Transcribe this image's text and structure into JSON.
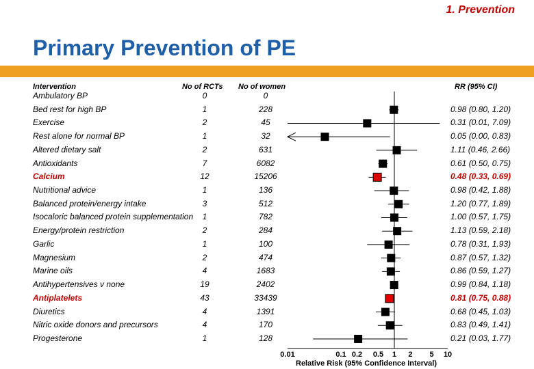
{
  "section_label": "1. Prevention",
  "title": "Primary Prevention of PE",
  "headers": {
    "intervention": "Intervention",
    "rcts": "No of RCTs",
    "women": "No of women",
    "rr": "RR (95% CI)"
  },
  "chart_data": {
    "type": "forest",
    "x_scale": "log",
    "xlim": [
      0.01,
      10
    ],
    "xlabel": "Relative Risk (95% Confidence Interval)",
    "ticks": [
      {
        "value": 0.01,
        "label": "0.01"
      },
      {
        "value": 0.1,
        "label": "0.1"
      },
      {
        "value": 0.2,
        "label": "0.2"
      },
      {
        "value": 0.5,
        "label": "0.5"
      },
      {
        "value": 1,
        "label": "1"
      },
      {
        "value": 2,
        "label": "2"
      },
      {
        "value": 5,
        "label": "5"
      },
      {
        "value": 10,
        "label": "10"
      }
    ],
    "reference_line": 1,
    "highlight_color": "#e00000",
    "rows": [
      {
        "intervention": "Ambulatory BP",
        "rcts": "0",
        "women": "0",
        "rr": null,
        "lo": null,
        "hi": null,
        "label": "",
        "highlight": false
      },
      {
        "intervention": "Bed rest for high BP",
        "rcts": "1",
        "women": "228",
        "rr": 0.98,
        "lo": 0.8,
        "hi": 1.2,
        "label": "0.98 (0.80, 1.20)",
        "highlight": false
      },
      {
        "intervention": "Exercise",
        "rcts": "2",
        "women": "45",
        "rr": 0.31,
        "lo": 0.01,
        "hi": 7.09,
        "label": "0.31 (0.01, 7.09)",
        "highlight": false
      },
      {
        "intervention": "Rest alone for normal BP",
        "rcts": "1",
        "women": "32",
        "rr": 0.05,
        "lo": 0.0,
        "hi": 0.83,
        "label": "0.05 (0.00, 0.83)",
        "highlight": false,
        "lo_arrow": true
      },
      {
        "intervention": "Altered dietary salt",
        "rcts": "2",
        "women": "631",
        "rr": 1.11,
        "lo": 0.46,
        "hi": 2.66,
        "label": "1.11 (0.46, 2.66)",
        "highlight": false
      },
      {
        "intervention": "Antioxidants",
        "rcts": "7",
        "women": "6082",
        "rr": 0.61,
        "lo": 0.5,
        "hi": 0.75,
        "label": "0.61 (0.50, 0.75)",
        "highlight": false
      },
      {
        "intervention": "Calcium",
        "rcts": "12",
        "women": "15206",
        "rr": 0.48,
        "lo": 0.33,
        "hi": 0.69,
        "label": "0.48 (0.33, 0.69)",
        "highlight": true
      },
      {
        "intervention": "Nutritional advice",
        "rcts": "1",
        "women": "136",
        "rr": 0.98,
        "lo": 0.42,
        "hi": 1.88,
        "label": "0.98 (0.42, 1.88)",
        "highlight": false
      },
      {
        "intervention": "Balanced protein/energy intake",
        "rcts": "3",
        "women": "512",
        "rr": 1.2,
        "lo": 0.77,
        "hi": 1.89,
        "label": "1.20 (0.77, 1.89)",
        "highlight": false
      },
      {
        "intervention": "Isocaloric balanced protein supplementation",
        "rcts": "1",
        "women": "782",
        "rr": 1.0,
        "lo": 0.57,
        "hi": 1.75,
        "label": "1.00 (0.57, 1.75)",
        "highlight": false
      },
      {
        "intervention": "Energy/protein restriction",
        "rcts": "2",
        "women": "284",
        "rr": 1.13,
        "lo": 0.59,
        "hi": 2.18,
        "label": "1.13 (0.59, 2.18)",
        "highlight": false
      },
      {
        "intervention": "Garlic",
        "rcts": "1",
        "women": "100",
        "rr": 0.78,
        "lo": 0.31,
        "hi": 1.93,
        "label": "0.78 (0.31, 1.93)",
        "highlight": false
      },
      {
        "intervention": "Magnesium",
        "rcts": "2",
        "women": "474",
        "rr": 0.87,
        "lo": 0.57,
        "hi": 1.32,
        "label": "0.87 (0.57, 1.32)",
        "highlight": false
      },
      {
        "intervention": "Marine oils",
        "rcts": "4",
        "women": "1683",
        "rr": 0.86,
        "lo": 0.59,
        "hi": 1.27,
        "label": "0.86 (0.59, 1.27)",
        "highlight": false
      },
      {
        "intervention": "Antihypertensives v none",
        "rcts": "19",
        "women": "2402",
        "rr": 0.99,
        "lo": 0.84,
        "hi": 1.18,
        "label": "0.99 (0.84, 1.18)",
        "highlight": false
      },
      {
        "intervention": "Antiplatelets",
        "rcts": "43",
        "women": "33439",
        "rr": 0.81,
        "lo": 0.75,
        "hi": 0.88,
        "label": "0.81 (0.75, 0.88)",
        "highlight": true
      },
      {
        "intervention": "Diuretics",
        "rcts": "4",
        "women": "1391",
        "rr": 0.68,
        "lo": 0.45,
        "hi": 1.03,
        "label": "0.68 (0.45, 1.03)",
        "highlight": false
      },
      {
        "intervention": "Nitric oxide donors and precursors",
        "rcts": "4",
        "women": "170",
        "rr": 0.83,
        "lo": 0.49,
        "hi": 1.41,
        "label": "0.83 (0.49, 1.41)",
        "highlight": false
      },
      {
        "intervention": "Progesterone",
        "rcts": "1",
        "women": "128",
        "rr": 0.21,
        "lo": 0.03,
        "hi": 1.77,
        "label": "0.21 (0.03, 1.77)",
        "highlight": false
      }
    ]
  }
}
